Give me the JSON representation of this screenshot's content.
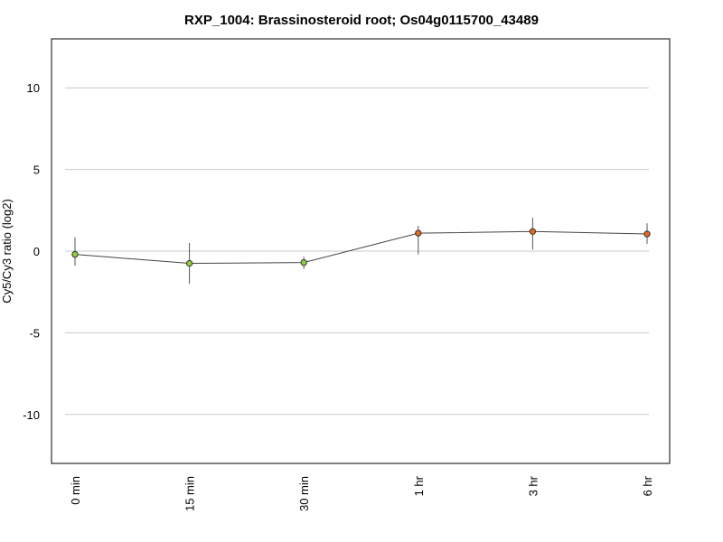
{
  "chart_data": {
    "type": "line",
    "title": "RXP_1004: Brassinosteroid root; Os04g0115700_43489",
    "xlabel": "",
    "ylabel": "Cy5/Cy3 ratio (log2)",
    "categories": [
      "0 min",
      "15 min",
      "30 min",
      "1 hr",
      "3 hr",
      "6 hr"
    ],
    "ylim": [
      -13,
      13
    ],
    "yticks": [
      -10,
      -5,
      0,
      5,
      10
    ],
    "ytick_labels": [
      "-10",
      "-5",
      "0",
      "5",
      "10"
    ],
    "grid": true,
    "series": [
      {
        "values": [
          -0.2,
          -0.75,
          -0.7,
          1.1,
          1.2,
          1.05
        ],
        "err_low": [
          -0.9,
          -2.0,
          -1.1,
          -0.2,
          0.1,
          0.45
        ],
        "err_high": [
          0.85,
          0.5,
          -0.35,
          1.55,
          2.05,
          1.7
        ],
        "point_colors": [
          "#8fce3a",
          "#8fce3a",
          "#8fce3a",
          "#e36b1f",
          "#e36b1f",
          "#e36b1f"
        ],
        "line_color": "#444444"
      }
    ]
  }
}
